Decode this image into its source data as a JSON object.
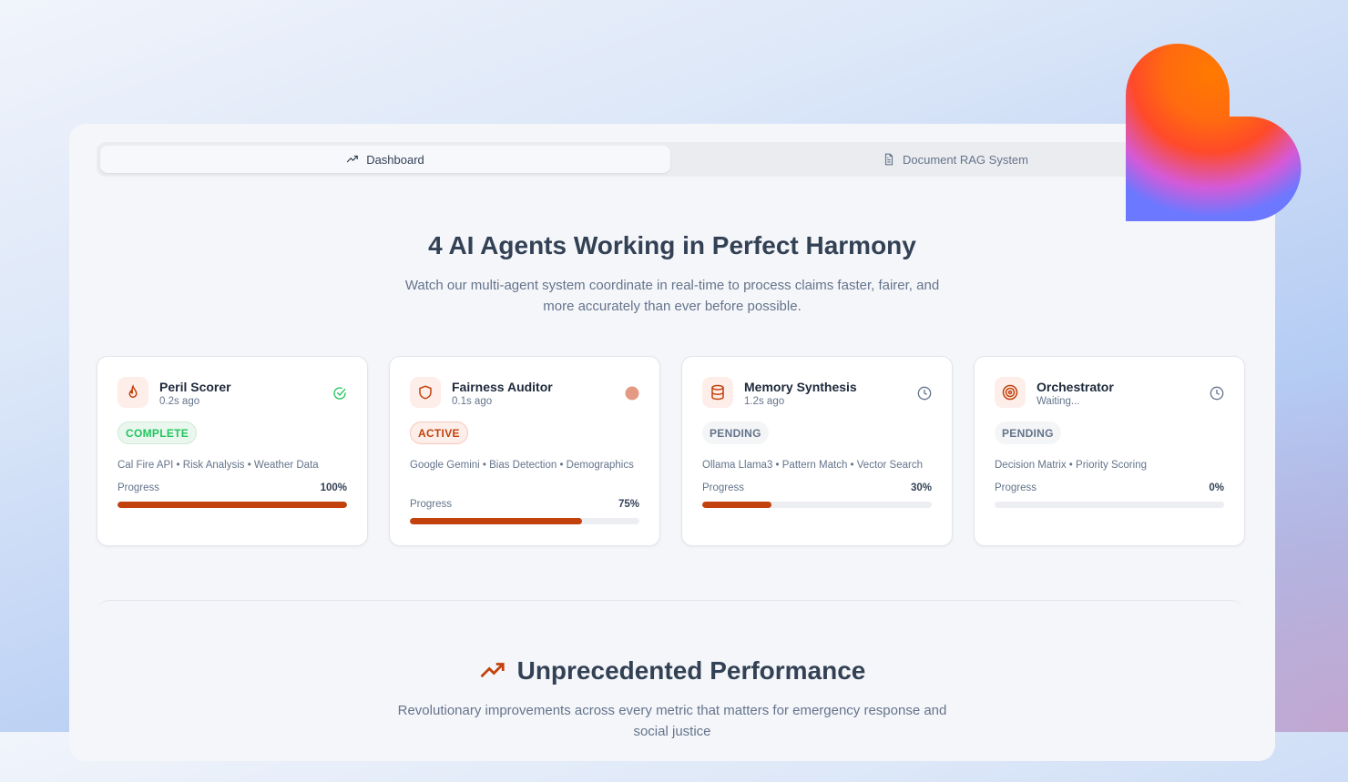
{
  "tabs": [
    {
      "label": "Dashboard",
      "icon": "trending-up-icon",
      "active": true
    },
    {
      "label": "Document RAG System",
      "icon": "file-text-icon",
      "active": false
    }
  ],
  "hero": {
    "title": "4 AI Agents Working in Perfect Harmony",
    "subtitle": "Watch our multi-agent system coordinate in real-time to process claims faster, fairer, and more accurately than ever before possible."
  },
  "agents": [
    {
      "name": "Peril Scorer",
      "time": "0.2s ago",
      "status": "COMPLETE",
      "status_icon": "check-circle-icon",
      "icon": "flame-icon",
      "tags": "Cal Fire API • Risk Analysis • Weather Data",
      "progress_label": "Progress",
      "progress": 100,
      "progress_text": "100%"
    },
    {
      "name": "Fairness Auditor",
      "time": "0.1s ago",
      "status": "ACTIVE",
      "status_icon": "pulse-dot-icon",
      "icon": "shield-icon",
      "tags": "Google Gemini • Bias Detection • Demographics",
      "progress_label": "Progress",
      "progress": 75,
      "progress_text": "75%"
    },
    {
      "name": "Memory Synthesis",
      "time": "1.2s ago",
      "status": "PENDING",
      "status_icon": "clock-icon",
      "icon": "database-icon",
      "tags": "Ollama Llama3 • Pattern Match • Vector Search",
      "progress_label": "Progress",
      "progress": 30,
      "progress_text": "30%"
    },
    {
      "name": "Orchestrator",
      "time": "Waiting...",
      "status": "PENDING",
      "status_icon": "clock-icon",
      "icon": "target-icon",
      "tags": "Decision Matrix • Priority Scoring",
      "progress_label": "Progress",
      "progress": 0,
      "progress_text": "0%"
    }
  ],
  "performance": {
    "title": "Unprecedented Performance",
    "subtitle": "Revolutionary improvements across every metric that matters for emergency response and social justice"
  },
  "colors": {
    "accent": "#c2410c",
    "complete": "#22c55e",
    "heading": "#334155"
  }
}
